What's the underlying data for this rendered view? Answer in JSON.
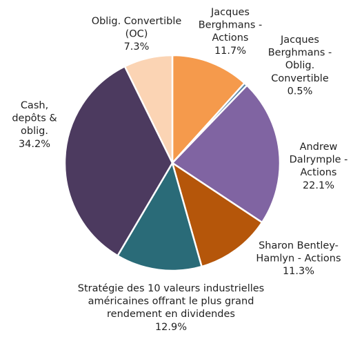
{
  "chart_data": {
    "type": "pie",
    "start_angle_deg": 0,
    "direction": "clockwise",
    "slices": [
      {
        "label_lines": [
          "Jacques",
          "Berghmans -",
          "Actions"
        ],
        "pct_text": "11.7%",
        "value": 11.7,
        "color": "#F59A4C"
      },
      {
        "label_lines": [
          "Jacques",
          "Berghmans -",
          "Oblig.",
          "Convertible"
        ],
        "pct_text": "0.5%",
        "value": 0.5,
        "color": "#5A86A8"
      },
      {
        "label_lines": [
          "Andrew",
          "Dalrymple -",
          "Actions"
        ],
        "pct_text": "22.1%",
        "value": 22.1,
        "color": "#8064A2"
      },
      {
        "label_lines": [
          "Sharon Bentley-",
          "Hamlyn - Actions"
        ],
        "pct_text": "11.3%",
        "value": 11.3,
        "color": "#B5560A"
      },
      {
        "label_lines": [
          "Stratégie des 10 valeurs industrielles",
          "américaines offrant le plus grand",
          "rendement en dividendes"
        ],
        "pct_text": "12.9%",
        "value": 12.9,
        "color": "#2A6B78"
      },
      {
        "label_lines": [
          "Cash,",
          "depôts &",
          "oblig."
        ],
        "pct_text": "34.2%",
        "value": 34.2,
        "color": "#4C3A5F"
      },
      {
        "label_lines": [
          "Oblig. Convertible",
          "(OC)"
        ],
        "pct_text": "7.3%",
        "value": 7.3,
        "color": "#FBD4B4"
      }
    ]
  }
}
